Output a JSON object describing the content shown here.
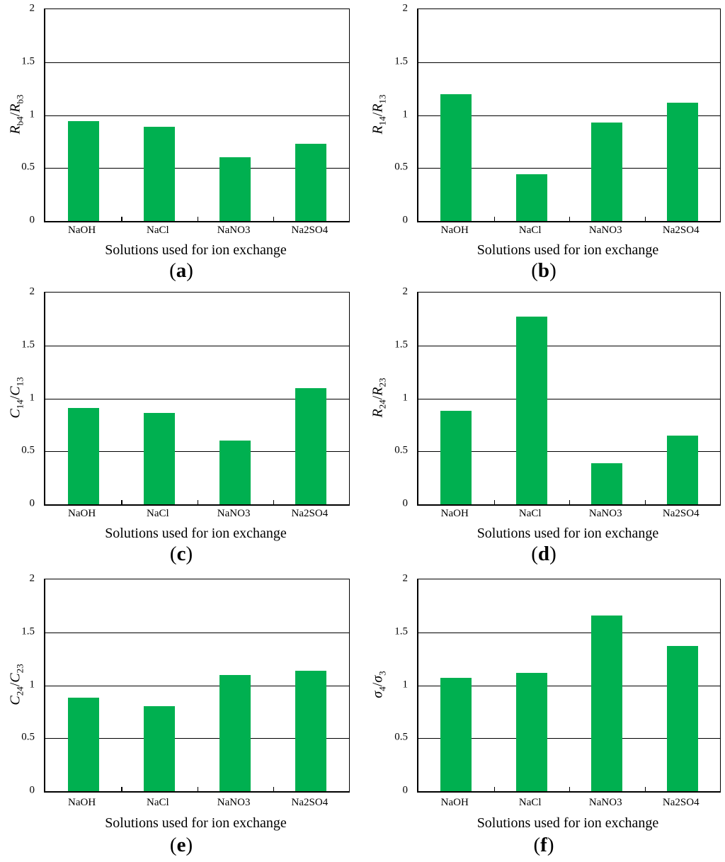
{
  "figure": {
    "caption_wrap": [
      "(",
      ")"
    ],
    "styles": {
      "bar_color": "#00B050",
      "axis_color": "#000000",
      "text_color": "#000000",
      "background": "#ffffff"
    }
  },
  "chart_data": [
    {
      "type": "bar",
      "panel_letter": "a",
      "ylabel_plain": "R_b4/R_b3",
      "ylabel_parts": {
        "num": "R",
        "num_sub": "b4",
        "den": "R",
        "den_sub": "b3"
      },
      "xlabel": "Solutions used for ion exchange",
      "categories": [
        "NaOH",
        "NaCl",
        "NaNO3",
        "Na2SO4"
      ],
      "values": [
        0.94,
        0.89,
        0.6,
        0.73
      ],
      "ylim": [
        0,
        2
      ],
      "yticks": [
        0,
        0.5,
        1,
        1.5,
        2
      ],
      "grid": "horizontal",
      "legend": "none"
    },
    {
      "type": "bar",
      "panel_letter": "b",
      "ylabel_plain": "R_14/R_13",
      "ylabel_parts": {
        "num": "R",
        "num_sub": "14",
        "den": "R",
        "den_sub": "13"
      },
      "xlabel": "Solutions used for ion exchange",
      "categories": [
        "NaOH",
        "NaCl",
        "NaNO3",
        "Na2SO4"
      ],
      "values": [
        1.2,
        0.44,
        0.93,
        1.12
      ],
      "ylim": [
        0,
        2
      ],
      "yticks": [
        0,
        0.5,
        1,
        1.5,
        2
      ],
      "grid": "horizontal",
      "legend": "none"
    },
    {
      "type": "bar",
      "panel_letter": "c",
      "ylabel_plain": "C_14/C_13",
      "ylabel_parts": {
        "num": "C",
        "num_sub": "14",
        "den": "C",
        "den_sub": "13"
      },
      "xlabel": "Solutions used for ion exchange",
      "categories": [
        "NaOH",
        "NaCl",
        "NaNO3",
        "Na2SO4"
      ],
      "values": [
        0.91,
        0.86,
        0.6,
        1.1
      ],
      "ylim": [
        0,
        2
      ],
      "yticks": [
        0,
        0.5,
        1,
        1.5,
        2
      ],
      "grid": "horizontal",
      "legend": "none"
    },
    {
      "type": "bar",
      "panel_letter": "d",
      "ylabel_plain": "R_24/R_23",
      "ylabel_parts": {
        "num": "R",
        "num_sub": "24",
        "den": "R",
        "den_sub": "23"
      },
      "xlabel": "Solutions used for ion exchange",
      "categories": [
        "NaOH",
        "NaCl",
        "NaNO3",
        "Na2SO4"
      ],
      "values": [
        0.88,
        1.77,
        0.39,
        0.65
      ],
      "ylim": [
        0,
        2
      ],
      "yticks": [
        0,
        0.5,
        1,
        1.5,
        2
      ],
      "grid": "horizontal",
      "legend": "none"
    },
    {
      "type": "bar",
      "panel_letter": "e",
      "ylabel_plain": "C_24/C_23",
      "ylabel_parts": {
        "num": "C",
        "num_sub": "24",
        "den": "C",
        "den_sub": "23"
      },
      "xlabel": "Solutions used for ion exchange",
      "categories": [
        "NaOH",
        "NaCl",
        "NaNO3",
        "Na2SO4"
      ],
      "values": [
        0.88,
        0.8,
        1.1,
        1.14
      ],
      "ylim": [
        0,
        2
      ],
      "yticks": [
        0,
        0.5,
        1,
        1.5,
        2
      ],
      "grid": "horizontal",
      "legend": "none"
    },
    {
      "type": "bar",
      "panel_letter": "f",
      "ylabel_plain": "sigma_4/sigma_3",
      "ylabel_parts": {
        "num": "σ",
        "num_sub": "4",
        "den": "σ",
        "den_sub": "3"
      },
      "xlabel": "Solutions used for ion exchange",
      "categories": [
        "NaOH",
        "NaCl",
        "NaNO3",
        "Na2SO4"
      ],
      "values": [
        1.07,
        1.12,
        1.66,
        1.37
      ],
      "ylim": [
        0,
        2
      ],
      "yticks": [
        0,
        0.5,
        1,
        1.5,
        2
      ],
      "grid": "horizontal",
      "legend": "none"
    }
  ]
}
